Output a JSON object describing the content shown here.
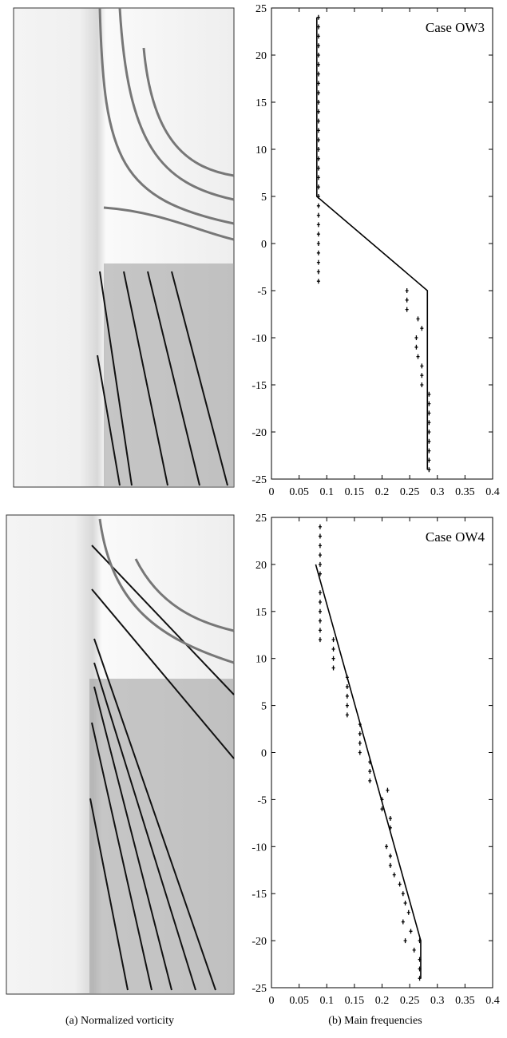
{
  "chart_data": [
    {
      "type": "scatter",
      "annotation": "Case OW3",
      "xlim": [
        0,
        0.4
      ],
      "ylim": [
        -25,
        25
      ],
      "xticks": [
        0,
        0.05,
        0.1,
        0.15,
        0.2,
        0.25,
        0.3,
        0.35,
        0.4
      ],
      "yticks": [
        -25,
        -20,
        -15,
        -10,
        -5,
        0,
        5,
        10,
        15,
        20,
        25
      ],
      "series": [
        {
          "style": "marker",
          "color": "#000000",
          "x": [
            0.085,
            0.085,
            0.085,
            0.085,
            0.085,
            0.085,
            0.085,
            0.085,
            0.085,
            0.085,
            0.085,
            0.085,
            0.085,
            0.085,
            0.085,
            0.085,
            0.085,
            0.085,
            0.085,
            0.085,
            0.085,
            0.085,
            0.085,
            0.085,
            0.085,
            0.085,
            0.085,
            0.085,
            0.085,
            0.245,
            0.245,
            0.245,
            0.265,
            0.272,
            0.262,
            0.262,
            0.265,
            0.272,
            0.272,
            0.272,
            0.285,
            0.285,
            0.285,
            0.285,
            0.285,
            0.285,
            0.285,
            0.285,
            0.285
          ],
          "y": [
            24,
            23,
            22,
            21,
            20,
            19,
            18,
            17,
            16,
            15,
            14,
            13,
            12,
            11,
            10,
            9,
            8,
            7,
            6,
            5,
            4,
            3,
            2,
            1,
            0,
            -1,
            -2,
            -3,
            -4,
            -5,
            -6,
            -7,
            -8,
            -9,
            -10,
            -11,
            -12,
            -13,
            -14,
            -15,
            -16,
            -17,
            -18,
            -19,
            -20,
            -21,
            -22,
            -23,
            -24
          ]
        },
        {
          "style": "line",
          "color": "#000000",
          "x": [
            0.082,
            0.082,
            0.282,
            0.282
          ],
          "y": [
            24,
            5,
            -5,
            -24
          ]
        }
      ]
    },
    {
      "type": "scatter",
      "annotation": "Case OW4",
      "xlim": [
        0,
        0.4
      ],
      "ylim": [
        -25,
        25
      ],
      "xticks": [
        0,
        0.05,
        0.1,
        0.15,
        0.2,
        0.25,
        0.3,
        0.35,
        0.4
      ],
      "yticks": [
        -25,
        -20,
        -15,
        -10,
        -5,
        0,
        5,
        10,
        15,
        20,
        25
      ],
      "series": [
        {
          "style": "marker",
          "color": "#000000",
          "x": [
            0.088,
            0.088,
            0.088,
            0.088,
            0.088,
            0.088,
            0.088,
            0.088,
            0.088,
            0.088,
            0.088,
            0.088,
            0.112,
            0.112,
            0.112,
            0.112,
            0.137,
            0.137,
            0.137,
            0.137,
            0.137,
            0.16,
            0.16,
            0.16,
            0.16,
            0.178,
            0.178,
            0.178,
            0.2,
            0.21,
            0.2,
            0.215,
            0.215,
            0.208,
            0.215,
            0.215,
            0.222,
            0.232,
            0.238,
            0.242,
            0.248,
            0.238,
            0.252,
            0.242,
            0.258,
            0.268,
            0.268,
            0.268,
            0.268
          ],
          "y": [
            24,
            23,
            22,
            21,
            20,
            19,
            17,
            16,
            15,
            14,
            13,
            12,
            12,
            11,
            10,
            9,
            8,
            7,
            6,
            5,
            4,
            3,
            2,
            1,
            0,
            -1,
            -2,
            -3,
            -5,
            -4,
            -6,
            -7,
            -8,
            -10,
            -11,
            -12,
            -13,
            -14,
            -15,
            -16,
            -17,
            -18,
            -19,
            -20,
            -21,
            -22,
            -23,
            -24,
            -20
          ]
        },
        {
          "style": "line",
          "color": "#000000",
          "x": [
            0.08,
            0.27,
            0.27
          ],
          "y": [
            20,
            -20,
            -24
          ]
        }
      ]
    }
  ],
  "captions": [
    "(a) Normalized  vorticity",
    "(b) Main frequencies"
  ]
}
